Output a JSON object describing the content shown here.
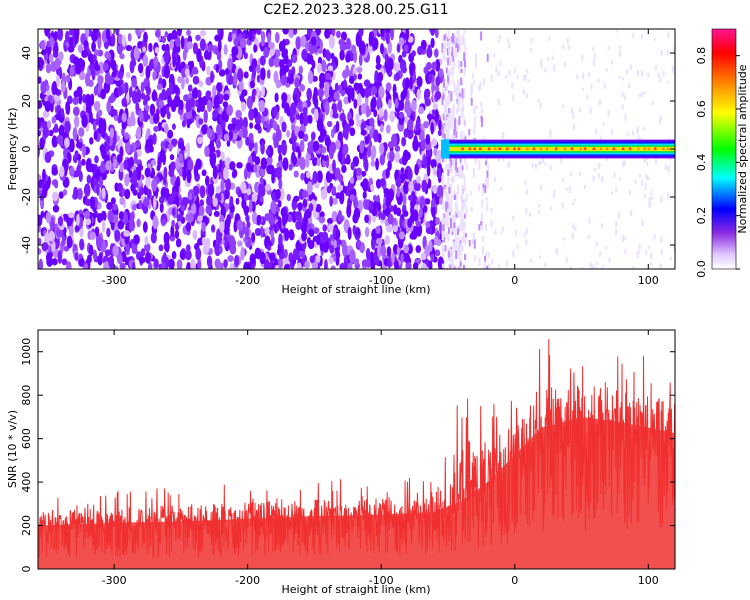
{
  "title": "C2E2.2023.328.00.25.G11",
  "chart_data": [
    {
      "type": "heatmap",
      "xlabel": "Height of straight line (km)",
      "ylabel": "Frequency (Hz)",
      "xlim": [
        -357,
        120
      ],
      "ylim": [
        -50,
        50
      ],
      "xticks": [
        -300,
        -200,
        -100,
        0,
        100
      ],
      "yticks": [
        -40,
        -20,
        0,
        20,
        40
      ],
      "noise_region": {
        "x_from": -357,
        "x_to": -55,
        "mean_amplitude": 0.15
      },
      "transition_region": {
        "x_from": -55,
        "x_to": -20
      },
      "signal_band": {
        "x_from": -55,
        "x_to": 120,
        "frequency_center": 0,
        "half_width": 3,
        "peak_amplitude": 0.85
      },
      "colorbar": {
        "label": "Normalized spectral amplitude",
        "range": [
          0.0,
          0.9
        ],
        "ticks": [
          0.0,
          0.2,
          0.4,
          0.6,
          0.8
        ],
        "colors": [
          "#ffffff",
          "#e0c8ff",
          "#8a2be2",
          "#0000ff",
          "#00ffff",
          "#00ff00",
          "#ffff00",
          "#ff8000",
          "#ff0000",
          "#ff1493"
        ]
      }
    },
    {
      "type": "line",
      "xlabel": "Height of straight line (km)",
      "ylabel": "SNR (10 * v/v)",
      "xlim": [
        -357,
        120
      ],
      "ylim": [
        0,
        1100
      ],
      "xticks": [
        -300,
        -200,
        -100,
        0,
        100
      ],
      "yticks": [
        0,
        200,
        400,
        600,
        800,
        1000
      ],
      "color": "#f03030",
      "envelope": [
        {
          "x": -357,
          "mean": 160,
          "max": 330
        },
        {
          "x": -300,
          "mean": 170,
          "max": 360
        },
        {
          "x": -250,
          "mean": 175,
          "max": 380
        },
        {
          "x": -200,
          "mean": 185,
          "max": 400
        },
        {
          "x": -150,
          "mean": 195,
          "max": 410
        },
        {
          "x": -100,
          "mean": 200,
          "max": 420
        },
        {
          "x": -60,
          "mean": 210,
          "max": 420
        },
        {
          "x": -40,
          "mean": 250,
          "max": 830
        },
        {
          "x": -20,
          "mean": 320,
          "max": 780
        },
        {
          "x": 0,
          "mean": 420,
          "max": 880
        },
        {
          "x": 20,
          "mean": 520,
          "max": 1080
        },
        {
          "x": 50,
          "mean": 560,
          "max": 1060
        },
        {
          "x": 80,
          "mean": 540,
          "max": 1080
        },
        {
          "x": 100,
          "mean": 520,
          "max": 1000
        },
        {
          "x": 120,
          "mean": 500,
          "max": 950
        }
      ]
    }
  ]
}
